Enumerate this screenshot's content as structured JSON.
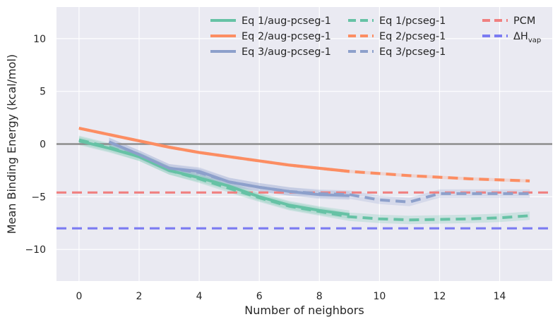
{
  "chart_data": {
    "type": "line",
    "title": "",
    "xlabel": "Number of neighbors",
    "ylabel": "Mean Binding Energy (kcal/mol)",
    "xlim": [
      -0.75,
      15.75
    ],
    "ylim": [
      -13,
      13
    ],
    "xticks": [
      0,
      2,
      4,
      6,
      8,
      10,
      12,
      14
    ],
    "yticks": [
      -10,
      -5,
      0,
      5,
      10
    ],
    "xtick_labels": [
      "0",
      "2",
      "4",
      "6",
      "8",
      "10",
      "12",
      "14"
    ],
    "ytick_labels": [
      "−10",
      "−5",
      "0",
      "5",
      "10"
    ],
    "grid": true,
    "zero_line": 0,
    "legend_position": "top-right",
    "series": [
      {
        "name": "Eq 1/aug-pcseg-1",
        "style": "solid",
        "color": "#66c2a5",
        "x": [
          0,
          1,
          2,
          3,
          4,
          5,
          6,
          7,
          8,
          9
        ],
        "y": [
          0.3,
          -0.4,
          -1.2,
          -2.5,
          -3.2,
          -4.0,
          -5.0,
          -5.8,
          -6.3,
          -6.7
        ],
        "band": 0.4
      },
      {
        "name": "Eq 2/aug-pcseg-1",
        "style": "solid",
        "color": "#fc8d62",
        "x": [
          0,
          1,
          2,
          3,
          4,
          5,
          6,
          7,
          8,
          9
        ],
        "y": [
          1.5,
          0.9,
          0.3,
          -0.3,
          -0.8,
          -1.2,
          -1.6,
          -2.0,
          -2.3,
          -2.6
        ],
        "band": 0.15
      },
      {
        "name": "Eq 3/aug-pcseg-1",
        "style": "solid",
        "color": "#8da0cb",
        "x": [
          1,
          2,
          3,
          4,
          5,
          6,
          7,
          8,
          9
        ],
        "y": [
          0.2,
          -1.0,
          -2.3,
          -2.6,
          -3.6,
          -4.1,
          -4.5,
          -4.8,
          -4.9
        ],
        "band": 0.4
      },
      {
        "name": "Eq 1/pcseg-1",
        "style": "dashed",
        "color": "#66c2a5",
        "x": [
          0,
          1,
          2,
          3,
          4,
          5,
          6,
          7,
          8,
          9,
          10,
          11,
          12,
          13,
          14,
          15
        ],
        "y": [
          0.4,
          -0.3,
          -1.2,
          -2.5,
          -3.3,
          -4.2,
          -5.1,
          -5.9,
          -6.4,
          -6.9,
          -7.1,
          -7.2,
          -7.15,
          -7.1,
          -7.0,
          -6.8
        ],
        "band": 0.4
      },
      {
        "name": "Eq 2/pcseg-1",
        "style": "dashed",
        "color": "#fc8d62",
        "x": [
          0,
          1,
          2,
          3,
          4,
          5,
          6,
          7,
          8,
          9,
          10,
          11,
          12,
          13,
          14,
          15
        ],
        "y": [
          1.5,
          0.9,
          0.3,
          -0.3,
          -0.8,
          -1.2,
          -1.6,
          -2.0,
          -2.3,
          -2.6,
          -2.8,
          -3.0,
          -3.15,
          -3.3,
          -3.4,
          -3.5
        ],
        "band": 0.15
      },
      {
        "name": "Eq 3/pcseg-1",
        "style": "dashed",
        "color": "#8da0cb",
        "x": [
          1,
          2,
          3,
          4,
          5,
          6,
          7,
          8,
          9,
          10,
          11,
          12,
          13,
          14,
          15
        ],
        "y": [
          0.2,
          -1.0,
          -2.3,
          -2.7,
          -3.6,
          -4.1,
          -4.5,
          -4.7,
          -4.8,
          -5.3,
          -5.5,
          -4.7,
          -4.7,
          -4.7,
          -4.7
        ],
        "band": 0.4
      },
      {
        "name": "PCM",
        "style": "dashed-hline",
        "color": "#f08080",
        "y": -4.6
      },
      {
        "name": "ΔH_vap",
        "label_base": "ΔH",
        "label_sub": "vap",
        "style": "dashed-hline",
        "color": "#7b7bf2",
        "y": -8.0
      }
    ]
  }
}
